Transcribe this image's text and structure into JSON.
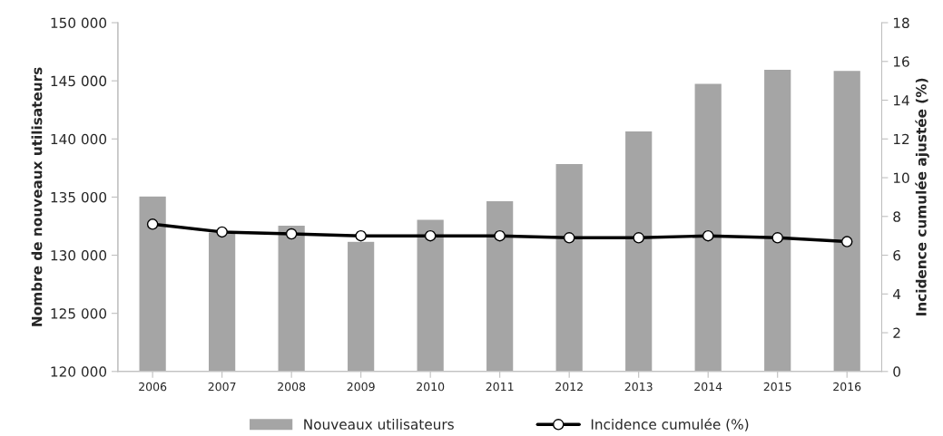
{
  "chart_data": {
    "type": "bar",
    "categories": [
      "2006",
      "2007",
      "2008",
      "2009",
      "2010",
      "2011",
      "2012",
      "2013",
      "2014",
      "2015",
      "2016"
    ],
    "ylabel": "Nombre de nouveaux utilisateurs",
    "y2label": "Incidence cumulée ajustée (%)",
    "series": [
      {
        "name": "Nouveaux utilisateurs",
        "color": "#a5a5a5",
        "values": [
          135100,
          132000,
          132600,
          131200,
          133100,
          134700,
          137900,
          140700,
          144800,
          146000,
          145900
        ]
      },
      {
        "name": "Incidence cumulée (%)",
        "type": "line",
        "axis": "y2",
        "color": "#000000",
        "marker": "circle",
        "values": [
          7.6,
          7.2,
          7.1,
          7.0,
          7.0,
          7.0,
          6.9,
          6.9,
          7.0,
          6.9,
          6.7
        ]
      }
    ],
    "ylim": [
      120000,
      150000
    ],
    "yticks": [
      {
        "value": 120000,
        "label": "120 000"
      },
      {
        "value": 125000,
        "label": "125 000"
      },
      {
        "value": 130000,
        "label": "130 000"
      },
      {
        "value": 135000,
        "label": "135 000"
      },
      {
        "value": 140000,
        "label": "140 000"
      },
      {
        "value": 145000,
        "label": "145 000"
      },
      {
        "value": 150000,
        "label": "150 000"
      }
    ],
    "y2lim": [
      0,
      18
    ],
    "y2ticks": [
      0,
      2,
      4,
      6,
      8,
      10,
      12,
      14,
      16,
      18
    ],
    "legend": "bottom",
    "grid": false
  }
}
